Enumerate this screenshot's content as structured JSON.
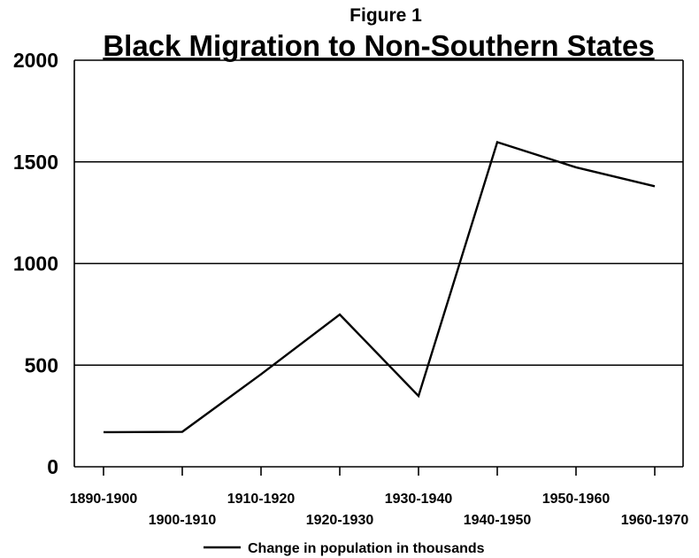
{
  "figure_label": "Figure 1",
  "chart_data": {
    "type": "line",
    "title": "Black Migration to Non-Southern States",
    "xlabel": "",
    "ylabel": "",
    "categories": [
      "1890-1900",
      "1900-1910",
      "1910-1920",
      "1920-1930",
      "1930-1940",
      "1940-1950",
      "1950-1960",
      "1960-1970"
    ],
    "series": [
      {
        "name": "Change in population in thousands",
        "values": [
          170,
          172,
          455,
          749,
          348,
          1597,
          1473,
          1380
        ]
      }
    ],
    "ylim": [
      0,
      2000
    ],
    "yticks": [
      0,
      500,
      1000,
      1500,
      2000
    ],
    "grid": "horizontal",
    "legend": "bottom",
    "line_color": "#000000"
  }
}
